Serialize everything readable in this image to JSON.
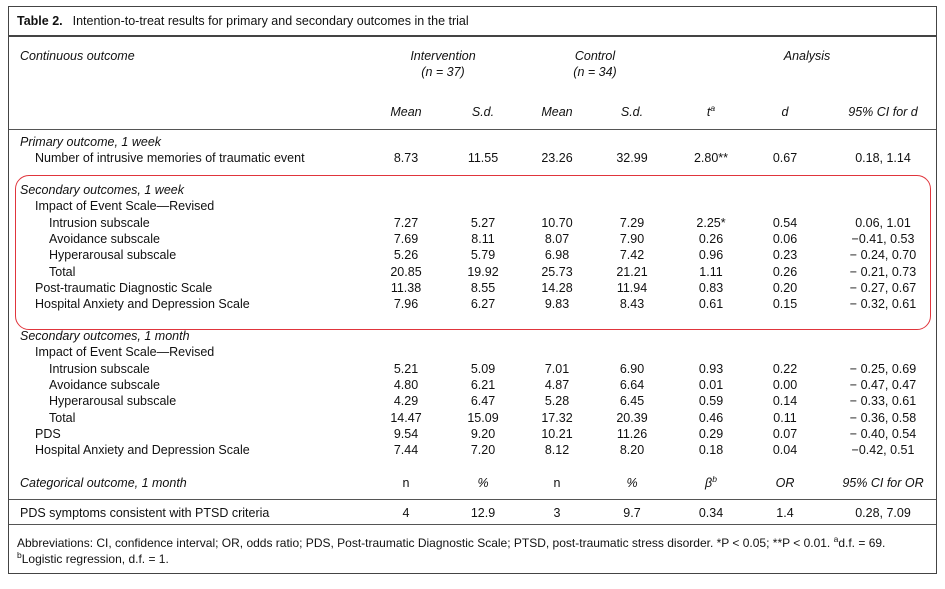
{
  "table": {
    "label": "Table 2.",
    "title": "Intention-to-treat results for primary and secondary outcomes in the trial",
    "head": {
      "continuous": "Continuous outcome",
      "intervention": "Intervention",
      "intervention_n": "(n = 37)",
      "control": "Control",
      "control_n": "(n = 34)",
      "analysis": "Analysis",
      "cols": [
        "Mean",
        "S.d.",
        "Mean",
        "S.d.",
        "t",
        "d",
        "95% CI for d"
      ],
      "t_sup": "a"
    },
    "primary": {
      "heading": "Primary outcome, 1 week",
      "row": [
        "Number of intrusive memories of traumatic event",
        "8.73",
        "11.55",
        "23.26",
        "32.99",
        "2.80**",
        "0.67",
        "0.18, 1.14"
      ]
    },
    "sec_week": {
      "heading": "Secondary outcomes, 1 week",
      "rows": [
        [
          "Impact of Event Scale—Revised",
          "",
          "",
          "",
          "",
          "",
          "",
          ""
        ],
        [
          "Intrusion subscale",
          "7.27",
          "5.27",
          "10.70",
          "7.29",
          "2.25*",
          "0.54",
          "0.06, 1.01"
        ],
        [
          "Avoidance subscale",
          "7.69",
          "8.11",
          "8.07",
          "7.90",
          "0.26",
          "0.06",
          "−0.41, 0.53"
        ],
        [
          "Hyperarousal subscale",
          "5.26",
          "5.79",
          "6.98",
          "7.42",
          "0.96",
          "0.23",
          "− 0.24, 0.70"
        ],
        [
          "Total",
          "20.85",
          "19.92",
          "25.73",
          "21.21",
          "1.11",
          "0.26",
          "− 0.21, 0.73"
        ],
        [
          "Post-traumatic Diagnostic Scale",
          "11.38",
          "8.55",
          "14.28",
          "11.94",
          "0.83",
          "0.20",
          "− 0.27, 0.67"
        ],
        [
          "Hospital Anxiety and Depression Scale",
          "7.96",
          "6.27",
          "9.83",
          "8.43",
          "0.61",
          "0.15",
          "− 0.32, 0.61"
        ]
      ]
    },
    "sec_month": {
      "heading": "Secondary outcomes, 1 month",
      "rows": [
        [
          "Impact of Event Scale—Revised",
          "",
          "",
          "",
          "",
          "",
          "",
          ""
        ],
        [
          "Intrusion subscale",
          "5.21",
          "5.09",
          "7.01",
          "6.90",
          "0.93",
          "0.22",
          "− 0.25, 0.69"
        ],
        [
          "Avoidance subscale",
          "4.80",
          "6.21",
          "4.87",
          "6.64",
          "0.01",
          "0.00",
          "− 0.47, 0.47"
        ],
        [
          "Hyperarousal subscale",
          "4.29",
          "6.47",
          "5.28",
          "6.45",
          "0.59",
          "0.14",
          "− 0.33, 0.61"
        ],
        [
          "Total",
          "14.47",
          "15.09",
          "17.32",
          "20.39",
          "0.46",
          "0.11",
          "− 0.36, 0.58"
        ],
        [
          "PDS",
          "9.54",
          "9.20",
          "10.21",
          "11.26",
          "0.29",
          "0.07",
          "− 0.40, 0.54"
        ],
        [
          "Hospital Anxiety and Depression Scale",
          "7.44",
          "7.20",
          "8.12",
          "8.20",
          "0.18",
          "0.04",
          "−0.42, 0.51"
        ]
      ]
    },
    "categorical": {
      "heading": "Categorical outcome, 1 month",
      "cols": [
        "n",
        "%",
        "n",
        "%",
        "β",
        "OR",
        "95% CI for OR"
      ],
      "beta_sup": "b",
      "row": [
        "PDS symptoms consistent with PTSD criteria",
        "4",
        "12.9",
        "3",
        "9.7",
        "0.34",
        "1.4",
        "0.28, 7.09"
      ]
    },
    "footnote_1": "Abbreviations: CI, confidence interval; OR, odds ratio; PDS, Post-traumatic Diagnostic Scale; PTSD, post-traumatic stress disorder. *P < 0.05; **P < 0.01. ",
    "footnote_a": "a",
    "footnote_a_text": "d.f. = 69.",
    "footnote_b": "b",
    "footnote_b_text": "Logistic regression, d.f. = 1.",
    "highlight_color": "#e0353c"
  }
}
